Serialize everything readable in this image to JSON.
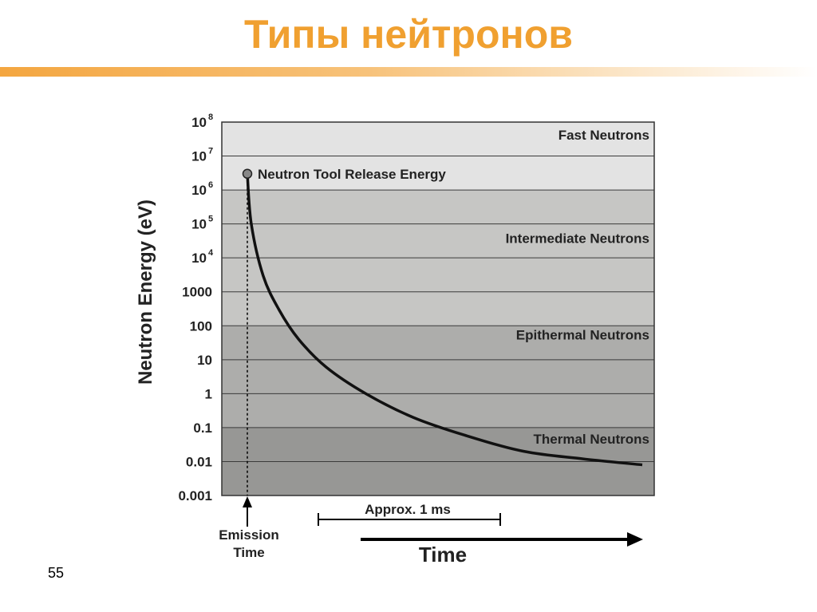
{
  "slide": {
    "title": "Типы нейтронов",
    "page_number": "55",
    "accent_color": "#f0a030"
  },
  "chart_data": {
    "type": "line",
    "ylabel": "Neutron Energy (eV)",
    "xlabel": "Time",
    "y_scale": "log",
    "ylim": [
      0.001,
      100000000
    ],
    "y_ticks": [
      {
        "base": "10",
        "exp": "8"
      },
      {
        "base": "10",
        "exp": "7"
      },
      {
        "base": "10",
        "exp": "6"
      },
      {
        "base": "10",
        "exp": "5"
      },
      {
        "base": "10",
        "exp": "4"
      },
      {
        "base": "1000",
        "exp": ""
      },
      {
        "base": "100",
        "exp": ""
      },
      {
        "base": "10",
        "exp": ""
      },
      {
        "base": "1",
        "exp": ""
      },
      {
        "base": "0.1",
        "exp": ""
      },
      {
        "base": "0.01",
        "exp": ""
      },
      {
        "base": "0.001",
        "exp": ""
      }
    ],
    "grid": true,
    "bands": [
      {
        "label": "Fast Neutrons",
        "from": 1000000,
        "to": 100000000,
        "color": "#e3e3e3"
      },
      {
        "label": "Intermediate Neutrons",
        "from": 100,
        "to": 1000000,
        "color": "#c6c6c4"
      },
      {
        "label": "Epithermal Neutrons",
        "from": 0.1,
        "to": 100,
        "color": "#adadab"
      },
      {
        "label": "Thermal Neutrons",
        "from": 0.001,
        "to": 0.1,
        "color": "#979795"
      }
    ],
    "release_point": {
      "label": "Neutron Tool Release Energy",
      "energy": 3000000
    },
    "emission_marker": {
      "line1": "Emission",
      "line2": "Time"
    },
    "scale_bar": {
      "label": "Approx. 1 ms"
    },
    "series": [
      {
        "points": [
          [
            0,
            3000000
          ],
          [
            0.01,
            100000
          ],
          [
            0.04,
            3000
          ],
          [
            0.08,
            300
          ],
          [
            0.13,
            40
          ],
          [
            0.2,
            6
          ],
          [
            0.3,
            1
          ],
          [
            0.42,
            0.2
          ],
          [
            0.55,
            0.06
          ],
          [
            0.7,
            0.02
          ],
          [
            0.85,
            0.012
          ],
          [
            1.0,
            0.008
          ]
        ]
      }
    ]
  }
}
